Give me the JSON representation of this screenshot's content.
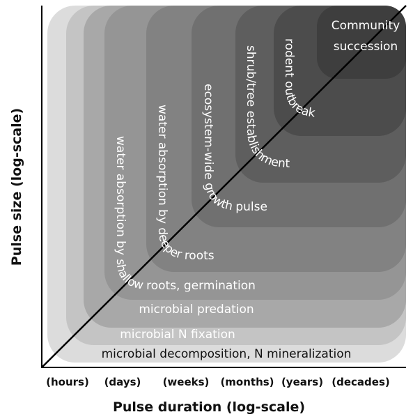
{
  "y_axis_label": "Pulse size (log-scale)",
  "x_axis_label": "Pulse duration (log-scale)",
  "x_ticks": [
    "(hours)",
    "(days)",
    "(weeks)",
    "(months)",
    "(years)",
    "(decades)"
  ],
  "zones": [
    {
      "label": "microbial decomposition, N mineralization"
    },
    {
      "label": "microbial N fixation"
    },
    {
      "label": "microbial predation"
    },
    {
      "label": "water absorption by shallow roots, germination"
    },
    {
      "label": "water absorption by deeper roots"
    },
    {
      "label": "ecosystem-wide growth pulse"
    },
    {
      "label": "shrub/tree establishment"
    },
    {
      "label": "rodent outbreak"
    },
    {
      "label_lines": [
        "Community",
        "succession"
      ]
    }
  ]
}
